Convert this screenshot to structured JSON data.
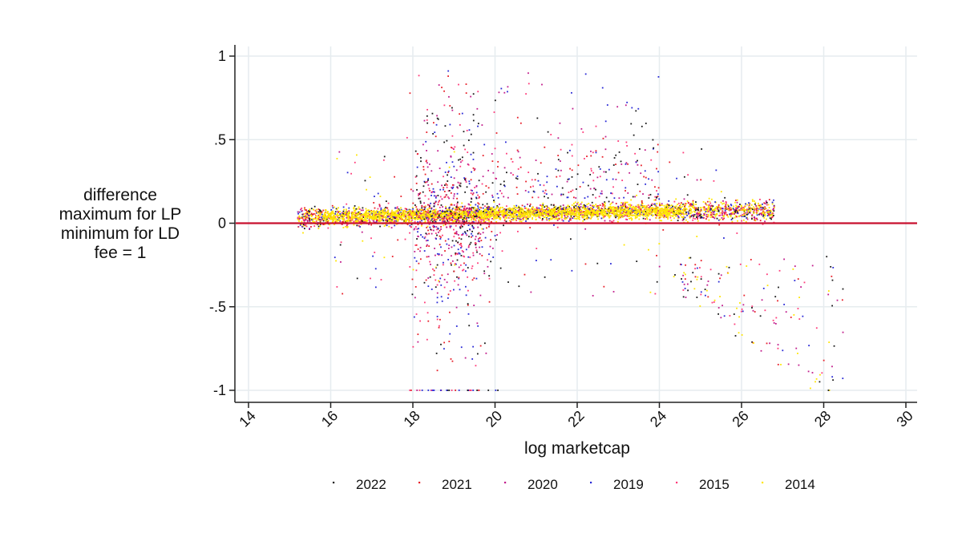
{
  "chart_data": {
    "type": "scatter",
    "title": "",
    "xlabel": "log marketcap",
    "ylabel_lines": [
      "difference",
      "maximum for LP",
      "minimum for LD",
      "fee = 1"
    ],
    "xlim": [
      14,
      30
    ],
    "ylim": [
      -1,
      1
    ],
    "x_ticks": [
      14,
      16,
      18,
      20,
      22,
      24,
      26,
      28,
      30
    ],
    "x_tick_labels": [
      "14",
      "16",
      "18",
      "20",
      "22",
      "24",
      "26",
      "28",
      "30"
    ],
    "y_ticks": [
      1,
      0.5,
      0,
      -0.5,
      -1
    ],
    "y_tick_labels": [
      "1",
      ".5",
      "0",
      "-.5",
      "-1"
    ],
    "grid": true,
    "reference_line": {
      "y": 0,
      "color": "#c8102e"
    },
    "legend_position": "bottom",
    "series": [
      {
        "name": "2022",
        "color": "#1a1a1a"
      },
      {
        "name": "2021",
        "color": "#e8202a"
      },
      {
        "name": "2020",
        "color": "#c21d8c"
      },
      {
        "name": "2019",
        "color": "#2a2ad6"
      },
      {
        "name": "2015",
        "color": "#ff3b7a"
      },
      {
        "name": "2014",
        "color": "#ffe600"
      }
    ]
  }
}
